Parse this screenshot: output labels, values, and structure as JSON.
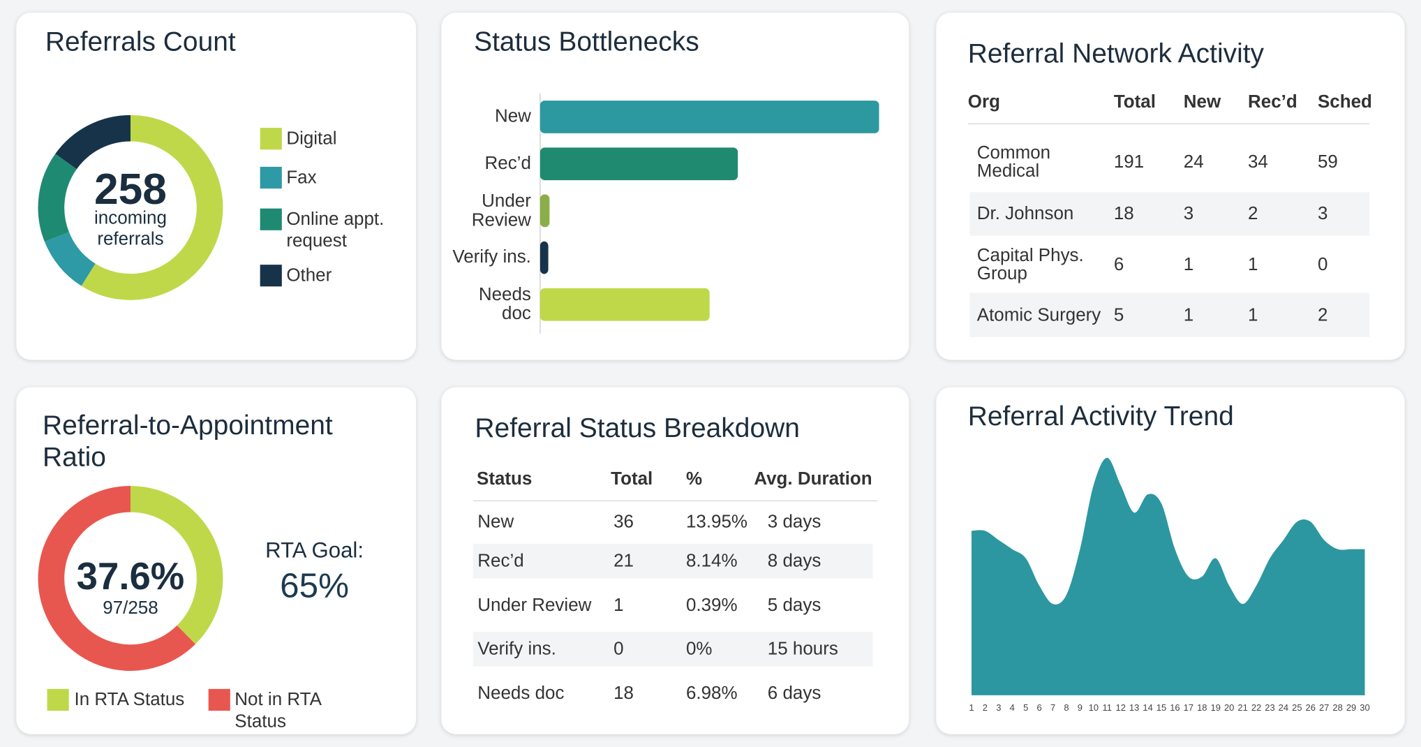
{
  "chart_data": [
    {
      "type": "donut",
      "title": "Referrals Count",
      "total": 258,
      "center_label": "incoming referrals",
      "categories": [
        "Digital",
        "Fax",
        "Online appt. request",
        "Other"
      ],
      "values": [
        152,
        26,
        41,
        39
      ],
      "colors": [
        "#bfd84a",
        "#2e9aa5",
        "#1e8a72",
        "#16334a"
      ]
    },
    {
      "type": "bar",
      "orientation": "horizontal",
      "title": "Status Bottlenecks",
      "categories": [
        "New",
        "Rec’d",
        "Under Review",
        "Verify ins.",
        "Needs doc"
      ],
      "values": [
        36,
        21,
        1,
        0,
        18
      ],
      "colors": [
        "#2c98a0",
        "#1f8a70",
        "#8bae48",
        "#16334a",
        "#bfd84a"
      ]
    },
    {
      "type": "donut",
      "title": "Referral-to-Appointment Ratio",
      "center_label": "37.6%",
      "center_sublabel": "97/258",
      "goal_label": "RTA Goal:",
      "goal": "65%",
      "categories": [
        "In RTA Status",
        "Not in RTA Status"
      ],
      "values": [
        97,
        161
      ],
      "colors": [
        "#bfd84a",
        "#e8574f"
      ]
    },
    {
      "type": "area",
      "title": "Referral Activity Trend",
      "x": [
        1,
        2,
        3,
        4,
        5,
        6,
        7,
        8,
        9,
        10,
        11,
        12,
        13,
        14,
        15,
        16,
        17,
        18,
        19,
        20,
        21,
        22,
        23,
        24,
        25,
        26,
        27,
        28,
        29,
        30
      ],
      "values": [
        18,
        18,
        17,
        16,
        15,
        12,
        10,
        11,
        16,
        23,
        26,
        23,
        20,
        22,
        21,
        16,
        13,
        13,
        15,
        12,
        10,
        12,
        15,
        17,
        19,
        19,
        17,
        16,
        16,
        16
      ],
      "color": "#2c97a0"
    }
  ],
  "network_table": {
    "title": "Referral Network Activity",
    "columns": [
      "Org",
      "Total",
      "New",
      "Rec’d",
      "Sched"
    ],
    "rows": [
      [
        "Common Medical",
        191,
        24,
        34,
        59
      ],
      [
        "Dr. Johnson",
        18,
        3,
        2,
        3
      ],
      [
        "Capital Phys. Group",
        6,
        1,
        1,
        0
      ],
      [
        "Atomic Surgery",
        5,
        1,
        1,
        2
      ]
    ]
  },
  "status_table": {
    "title": "Referral Status Breakdown",
    "columns": [
      "Status",
      "Total",
      "%",
      "Avg. Duration"
    ],
    "rows": [
      [
        "New",
        36,
        "13.95%",
        "3 days"
      ],
      [
        "Rec’d",
        21,
        "8.14%",
        "8 days"
      ],
      [
        "Under Review",
        1,
        "0.39%",
        "5 days"
      ],
      [
        "Verify ins.",
        0,
        "0%",
        "15 hours"
      ],
      [
        "Needs doc",
        18,
        "6.98%",
        "6 days"
      ]
    ]
  }
}
